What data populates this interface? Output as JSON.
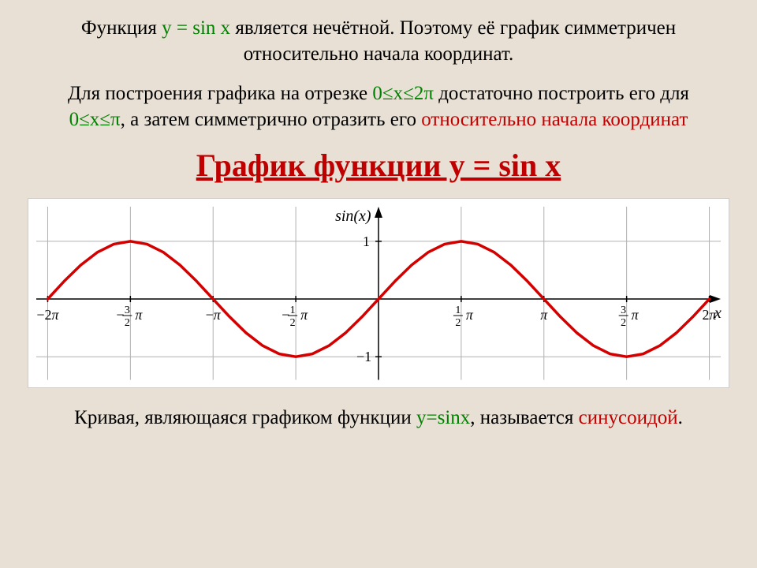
{
  "para1": {
    "pre": "Функция ",
    "fn": "y = sin x",
    "post": " является нечётной. Поэтому её график симметричен относительно начала координат."
  },
  "para2": {
    "pre": "Для построения графика на отрезке ",
    "r1": "0≤x≤2π",
    "mid1": " достаточно построить его для ",
    "r2": "0≤x≤π",
    "mid2": ", а затем симметрично отразить его ",
    "tail": "относительно начала координат"
  },
  "title": "График функции y = sin x",
  "caption": {
    "pre": "Кривая, являющаяся графиком функции ",
    "fn": "y=sinx",
    "mid": ", называется ",
    "term": "синусоидой",
    "post": "."
  },
  "chart": {
    "type": "line",
    "function_label": "sin(x)",
    "x_axis_label": "x",
    "curve_color": "#d40000",
    "curve_width": 3.5,
    "axis_color": "#000000",
    "grid_color": "#b0b0b0",
    "background_color": "#ffffff",
    "tick_fontsize": 18,
    "label_fontsize": 20,
    "xlim": [
      -6.5,
      6.5
    ],
    "ylim": [
      -1.4,
      1.6
    ],
    "yticks": [
      -1,
      1
    ],
    "ytick_labels": [
      "−1",
      "1"
    ],
    "xticks": [
      -6.28319,
      -4.71239,
      -3.14159,
      -1.5708,
      1.5708,
      3.14159,
      4.71239,
      6.28319
    ],
    "xtick_labels": [
      "−2π",
      "−(3/2)π",
      "−π",
      "−(1/2)π",
      "(1/2)π",
      "π",
      "(3/2)π",
      "2π"
    ],
    "series": {
      "x": [
        -6.28319,
        -5.969,
        -5.655,
        -5.341,
        -5.027,
        -4.712,
        -4.398,
        -4.084,
        -3.77,
        -3.456,
        -3.142,
        -2.827,
        -2.513,
        -2.199,
        -1.885,
        -1.571,
        -1.257,
        -0.942,
        -0.628,
        -0.314,
        0,
        0.314,
        0.628,
        0.942,
        1.257,
        1.571,
        1.885,
        2.199,
        2.513,
        2.827,
        3.142,
        3.456,
        3.77,
        4.084,
        4.398,
        4.712,
        5.027,
        5.341,
        5.655,
        5.969,
        6.28319
      ],
      "y": [
        0,
        0.309,
        0.588,
        0.809,
        0.951,
        1,
        0.951,
        0.809,
        0.588,
        0.309,
        0,
        -0.309,
        -0.588,
        -0.809,
        -0.951,
        -1,
        -0.951,
        -0.809,
        -0.588,
        -0.309,
        0,
        0.309,
        0.588,
        0.809,
        0.951,
        1,
        0.951,
        0.809,
        0.588,
        0.309,
        0,
        -0.309,
        -0.588,
        -0.809,
        -0.951,
        -1,
        -0.951,
        -0.809,
        -0.588,
        -0.309,
        0
      ]
    }
  },
  "colors": {
    "red": "#c00000",
    "green": "#008000",
    "text": "#000000",
    "page_bg": "#e8e0d4"
  }
}
